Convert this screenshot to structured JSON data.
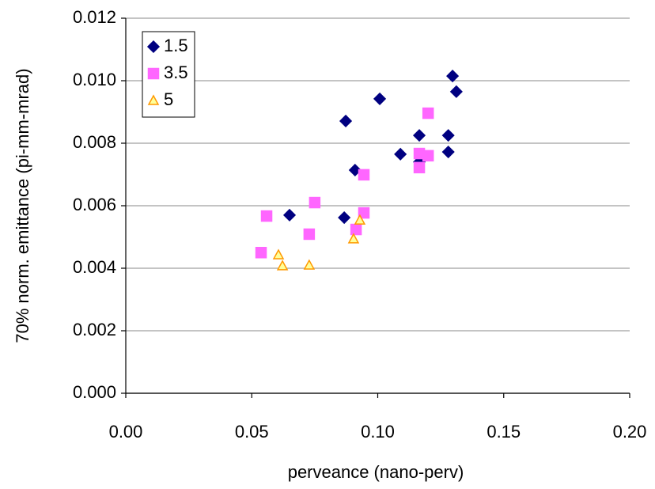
{
  "chart_data": {
    "type": "scatter",
    "xlabel": "perveance (nano-perv)",
    "ylabel": "70% norm. emittance (pi-mm-mrad)",
    "xlim": [
      0,
      0.2
    ],
    "ylim": [
      0,
      0.012
    ],
    "xticks": [
      {
        "value": 0,
        "label": "0.00"
      },
      {
        "value": 0.05,
        "label": "0.05"
      },
      {
        "value": 0.1,
        "label": "0.10"
      },
      {
        "value": 0.15,
        "label": "0.15"
      },
      {
        "value": 0.2,
        "label": "0.20"
      }
    ],
    "yticks": [
      {
        "value": 0,
        "label": "0.000"
      },
      {
        "value": 0.002,
        "label": "0.002"
      },
      {
        "value": 0.004,
        "label": "0.004"
      },
      {
        "value": 0.006,
        "label": "0.006"
      },
      {
        "value": 0.008,
        "label": "0.008"
      },
      {
        "value": 0.01,
        "label": "0.010"
      },
      {
        "value": 0.012,
        "label": "0.012"
      }
    ],
    "grid": true,
    "legend": "upper-left",
    "series": [
      {
        "name": "1.5",
        "marker": "diamond",
        "color": "#000080",
        "edgecolor": "#000080",
        "x": [
          0.065,
          0.0867,
          0.0873,
          0.091,
          0.1008,
          0.109,
          0.1165,
          0.1165,
          0.128,
          0.128,
          0.1297,
          0.1312
        ],
        "y": [
          0.0057,
          0.00562,
          0.00871,
          0.00714,
          0.00942,
          0.00765,
          0.00825,
          0.0074,
          0.00825,
          0.00772,
          0.01015,
          0.00965
        ]
      },
      {
        "name": "3.5",
        "marker": "square",
        "color": "#ff66ff",
        "edgecolor": "#ff66ff",
        "x": [
          0.0537,
          0.0559,
          0.0728,
          0.075,
          0.0914,
          0.0945,
          0.0945,
          0.1165,
          0.1165,
          0.12,
          0.12
        ],
        "y": [
          0.0045,
          0.00567,
          0.00509,
          0.0061,
          0.00524,
          0.00699,
          0.00577,
          0.00767,
          0.00722,
          0.0076,
          0.00896
        ]
      },
      {
        "name": "5",
        "marker": "triangle",
        "color": "#ffff99",
        "edgecolor": "#ff9900",
        "x": [
          0.0606,
          0.0622,
          0.0728,
          0.0904,
          0.0929
        ],
        "y": [
          0.00443,
          0.00408,
          0.0041,
          0.00494,
          0.00554
        ]
      }
    ]
  }
}
